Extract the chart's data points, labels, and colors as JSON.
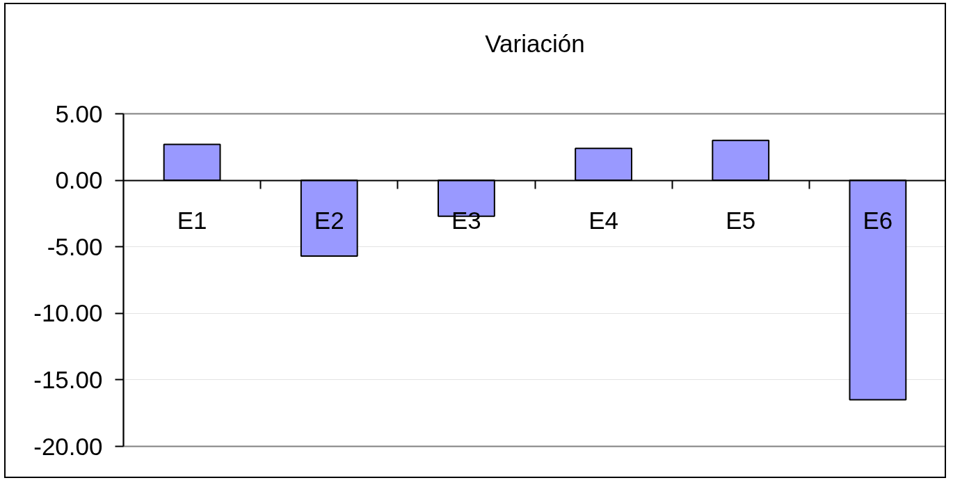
{
  "chart_data": {
    "type": "bar",
    "title": "Variación",
    "categories": [
      "E1",
      "E2",
      "E3",
      "E4",
      "E5",
      "E6"
    ],
    "values": [
      2.7,
      -5.7,
      -2.7,
      2.4,
      3.0,
      -16.5
    ],
    "color": "#9999ff",
    "ylim": [
      -20,
      5
    ],
    "yticks": [
      {
        "value": -20,
        "label": "-20.00"
      },
      {
        "value": -15,
        "label": "-15.00"
      },
      {
        "value": -10,
        "label": "-10.00"
      },
      {
        "value": -5,
        "label": "-5.00"
      },
      {
        "value": 0,
        "label": "0.00"
      },
      {
        "value": 5,
        "label": "5.00"
      }
    ],
    "grid": "y"
  }
}
